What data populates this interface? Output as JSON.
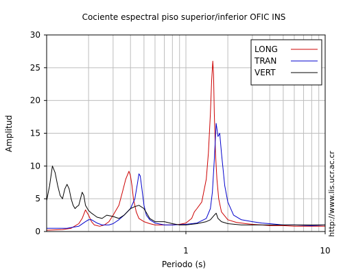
{
  "chart_data": {
    "type": "line",
    "title": "Cociente espectral piso superior/inferior  OFIC INS",
    "xlabel": "Periodo (s)",
    "ylabel": "Amplitud",
    "xscale": "log",
    "xlim": [
      0.1,
      10
    ],
    "ylim": [
      0,
      30
    ],
    "x_ticks": [
      1,
      10
    ],
    "x_tick_labels": [
      "1",
      "10"
    ],
    "y_ticks": [
      0,
      5,
      10,
      15,
      20,
      25,
      30
    ],
    "y_tick_labels": [
      "0",
      "5",
      "10",
      "15",
      "20",
      "25",
      "30"
    ],
    "grid": true,
    "legend_position": "top-right",
    "side_label": "http://www.lis.ucr.ac.cr",
    "series": [
      {
        "name": "LONG",
        "color": "#cc0000",
        "x": [
          0.1,
          0.13,
          0.15,
          0.17,
          0.18,
          0.19,
          0.2,
          0.21,
          0.22,
          0.24,
          0.26,
          0.28,
          0.3,
          0.33,
          0.35,
          0.37,
          0.39,
          0.4,
          0.41,
          0.42,
          0.44,
          0.46,
          0.5,
          0.55,
          0.6,
          0.7,
          0.8,
          0.9,
          1.0,
          1.1,
          1.15,
          1.2,
          1.3,
          1.4,
          1.45,
          1.5,
          1.53,
          1.56,
          1.58,
          1.6,
          1.63,
          1.67,
          1.72,
          1.8,
          2.0,
          2.3,
          2.7,
          3.0,
          3.5,
          4.0,
          5.0,
          6.0,
          8.0,
          10.0
        ],
        "y": [
          0.2,
          0.3,
          0.5,
          1.2,
          2.0,
          3.3,
          2.5,
          1.5,
          1.0,
          0.8,
          1.0,
          1.5,
          2.5,
          4.0,
          6.0,
          8.0,
          9.2,
          8.5,
          7.0,
          5.0,
          3.0,
          2.0,
          1.5,
          1.2,
          1.0,
          1.0,
          1.0,
          1.1,
          1.3,
          2.0,
          3.0,
          3.5,
          4.5,
          8.0,
          12.0,
          18.0,
          23.0,
          26.0,
          24.0,
          18.0,
          12.0,
          8.0,
          5.0,
          3.0,
          1.8,
          1.4,
          1.2,
          1.1,
          1.0,
          0.9,
          0.9,
          0.8,
          0.8,
          0.8
        ]
      },
      {
        "name": "TRAN",
        "color": "#0000cc",
        "x": [
          0.1,
          0.14,
          0.17,
          0.19,
          0.2,
          0.21,
          0.23,
          0.25,
          0.28,
          0.3,
          0.33,
          0.36,
          0.4,
          0.43,
          0.45,
          0.46,
          0.47,
          0.48,
          0.5,
          0.52,
          0.55,
          0.6,
          0.7,
          0.8,
          1.0,
          1.2,
          1.4,
          1.5,
          1.55,
          1.6,
          1.65,
          1.7,
          1.75,
          1.8,
          1.9,
          2.0,
          2.2,
          2.5,
          3.0,
          3.5,
          4.0,
          5.0,
          6.0,
          8.0,
          10.0
        ],
        "y": [
          0.5,
          0.5,
          0.8,
          1.5,
          1.8,
          1.8,
          1.3,
          1.0,
          1.0,
          1.2,
          1.8,
          2.5,
          3.5,
          5.0,
          7.5,
          8.8,
          8.5,
          7.0,
          4.0,
          2.5,
          1.8,
          1.3,
          1.0,
          1.0,
          1.1,
          1.3,
          2.0,
          3.5,
          6.0,
          11.0,
          16.5,
          14.5,
          15.0,
          12.0,
          7.0,
          4.5,
          2.5,
          1.8,
          1.5,
          1.3,
          1.2,
          1.0,
          1.0,
          0.9,
          1.0
        ]
      },
      {
        "name": "VERT",
        "color": "#000000",
        "x": [
          0.1,
          0.105,
          0.11,
          0.115,
          0.12,
          0.125,
          0.13,
          0.135,
          0.14,
          0.145,
          0.15,
          0.155,
          0.16,
          0.165,
          0.17,
          0.18,
          0.185,
          0.19,
          0.2,
          0.21,
          0.22,
          0.23,
          0.25,
          0.27,
          0.3,
          0.33,
          0.36,
          0.4,
          0.43,
          0.46,
          0.5,
          0.55,
          0.6,
          0.65,
          0.7,
          0.8,
          0.9,
          1.0,
          1.2,
          1.4,
          1.5,
          1.6,
          1.65,
          1.7,
          1.8,
          2.0,
          2.5,
          3.0,
          4.0,
          5.0,
          7.0,
          10.0
        ],
        "y": [
          4.7,
          7.0,
          10.0,
          9.0,
          7.0,
          5.5,
          5.0,
          6.5,
          7.2,
          6.5,
          5.0,
          4.0,
          3.5,
          3.8,
          4.0,
          6.0,
          5.5,
          4.0,
          3.2,
          2.8,
          2.5,
          2.2,
          2.0,
          2.5,
          2.3,
          2.0,
          2.5,
          3.5,
          3.8,
          4.0,
          3.5,
          2.0,
          1.5,
          1.5,
          1.5,
          1.2,
          1.0,
          1.0,
          1.2,
          1.5,
          1.8,
          2.5,
          2.8,
          2.0,
          1.5,
          1.2,
          1.0,
          1.0,
          1.0,
          1.0,
          1.0,
          1.0
        ]
      }
    ]
  }
}
